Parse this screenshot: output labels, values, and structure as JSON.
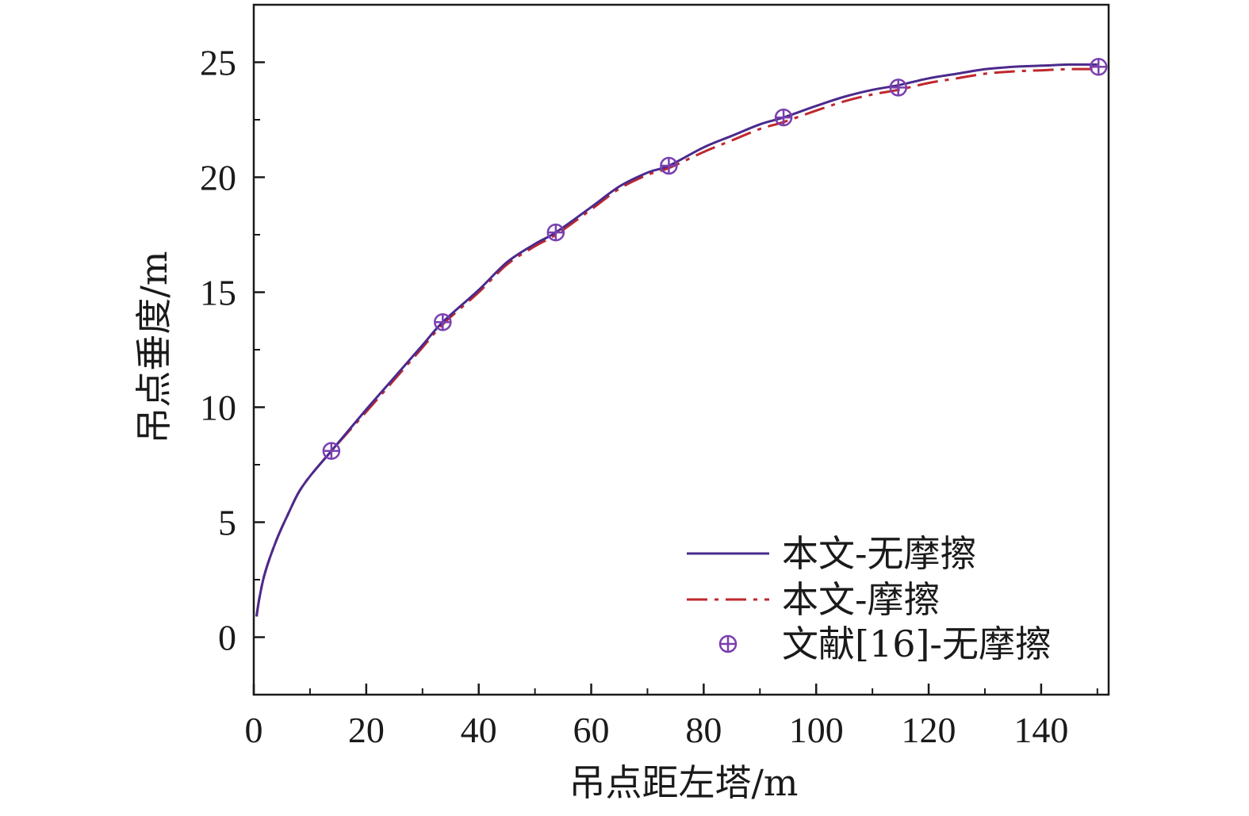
{
  "chart_data": {
    "type": "line",
    "xlabel": "吊点距左塔/m",
    "ylabel": "吊点垂度/m",
    "xlim": [
      0,
      152
    ],
    "ylim": [
      -2.5,
      27.5
    ],
    "xticks": [
      0,
      20,
      40,
      60,
      80,
      100,
      120,
      140
    ],
    "yticks": [
      0,
      5,
      10,
      15,
      20,
      25
    ],
    "xtick_labels": [
      "0",
      "20",
      "40",
      "60",
      "80",
      "100",
      "120",
      "140"
    ],
    "ytick_labels": [
      "0",
      "5",
      "10",
      "15",
      "20",
      "25"
    ],
    "x_minor_step": 10,
    "y_minor_step": 2.5,
    "grid": false,
    "legend_position": "bottom-right",
    "series": [
      {
        "name": "本文-无摩擦",
        "style": "solid",
        "color": "#4b2a8c",
        "x": [
          0.5,
          1,
          2,
          4,
          6,
          8,
          10,
          13.8,
          20,
          25,
          30,
          33.6,
          40,
          45,
          50,
          53.7,
          60,
          65,
          70,
          73.8,
          80,
          85,
          90,
          94.2,
          100,
          105,
          110,
          114.6,
          120,
          125,
          130,
          135,
          140,
          145,
          150
        ],
        "y": [
          0.9,
          1.7,
          2.8,
          4.2,
          5.3,
          6.3,
          7.0,
          8.1,
          9.9,
          11.3,
          12.7,
          13.7,
          15.1,
          16.3,
          17.1,
          17.6,
          18.7,
          19.6,
          20.2,
          20.5,
          21.3,
          21.8,
          22.3,
          22.6,
          23.1,
          23.5,
          23.8,
          24.0,
          24.3,
          24.5,
          24.7,
          24.8,
          24.85,
          24.9,
          24.9
        ]
      },
      {
        "name": "本文-摩擦",
        "style": "dash-dot",
        "color": "#c0272d",
        "x": [
          0.5,
          1,
          2,
          4,
          6,
          8,
          10,
          13.8,
          20,
          25,
          30,
          33.6,
          40,
          45,
          50,
          53.7,
          60,
          65,
          70,
          73.8,
          80,
          85,
          90,
          94.2,
          100,
          105,
          110,
          114.6,
          120,
          125,
          130,
          135,
          140,
          145,
          150
        ],
        "y": [
          0.9,
          1.7,
          2.8,
          4.2,
          5.3,
          6.3,
          7.0,
          8.1,
          9.8,
          11.2,
          12.6,
          13.6,
          15.0,
          16.2,
          17.0,
          17.5,
          18.6,
          19.5,
          20.1,
          20.4,
          21.1,
          21.6,
          22.1,
          22.4,
          22.9,
          23.3,
          23.6,
          23.8,
          24.1,
          24.3,
          24.5,
          24.6,
          24.65,
          24.7,
          24.7
        ]
      },
      {
        "name": "文献[16]-无摩擦",
        "style": "markers",
        "color": "#7a3fb0",
        "x": [
          13.8,
          33.6,
          53.7,
          73.8,
          94.2,
          114.6,
          150.2
        ],
        "y": [
          8.1,
          13.7,
          17.6,
          20.5,
          22.6,
          23.9,
          24.8
        ]
      }
    ]
  }
}
